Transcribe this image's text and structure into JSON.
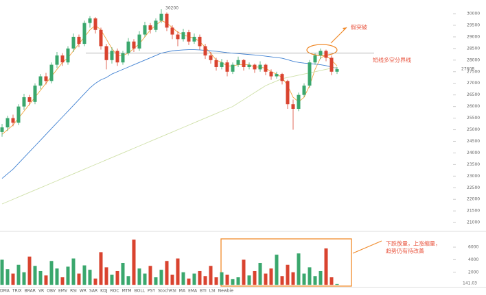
{
  "chart_data": {
    "type": "candlestick",
    "candles": [
      [
        24900,
        25250,
        24700,
        25100
      ],
      [
        25100,
        25600,
        24950,
        25500
      ],
      [
        25500,
        25650,
        25150,
        25300
      ],
      [
        25300,
        26100,
        25200,
        26000
      ],
      [
        26000,
        26550,
        25850,
        26400
      ],
      [
        26400,
        26500,
        26050,
        26200
      ],
      [
        26200,
        27000,
        26100,
        26900
      ],
      [
        26900,
        27400,
        26750,
        27300
      ],
      [
        27300,
        27450,
        26950,
        27100
      ],
      [
        27100,
        27900,
        27000,
        27800
      ],
      [
        27800,
        28350,
        27650,
        28200
      ],
      [
        28200,
        28300,
        27750,
        27900
      ],
      [
        27900,
        28600,
        27800,
        28500
      ],
      [
        28500,
        29150,
        28350,
        29000
      ],
      [
        29000,
        29100,
        28550,
        28700
      ],
      [
        28700,
        29700,
        28600,
        29600
      ],
      [
        29600,
        29900,
        29400,
        29800
      ],
      [
        29800,
        29850,
        29150,
        29300
      ],
      [
        29300,
        29400,
        28450,
        28600
      ],
      [
        28600,
        28700,
        27600,
        28000
      ],
      [
        28000,
        28550,
        27850,
        28400
      ],
      [
        28400,
        28500,
        27750,
        27900
      ],
      [
        27900,
        28400,
        27800,
        28300
      ],
      [
        28300,
        28950,
        28200,
        28800
      ],
      [
        28800,
        28900,
        28350,
        28500
      ],
      [
        28500,
        29250,
        28400,
        29100
      ],
      [
        29100,
        29650,
        29000,
        29500
      ],
      [
        29500,
        29600,
        29150,
        29300
      ],
      [
        29300,
        29800,
        29200,
        29700
      ],
      [
        29700,
        30200,
        29600,
        30000
      ],
      [
        30000,
        30050,
        29250,
        29400
      ],
      [
        29400,
        29500,
        28900,
        29100
      ],
      [
        29100,
        29250,
        28600,
        28900
      ],
      [
        28900,
        29350,
        28800,
        29200
      ],
      [
        29200,
        29300,
        28650,
        28800
      ],
      [
        28800,
        29150,
        28700,
        29000
      ],
      [
        29000,
        29100,
        28450,
        28600
      ],
      [
        28600,
        28700,
        28050,
        28200
      ],
      [
        28200,
        28350,
        27850,
        28000
      ],
      [
        28000,
        28100,
        27550,
        27700
      ],
      [
        27700,
        28050,
        27600,
        27900
      ],
      [
        27900,
        28000,
        27300,
        27500
      ],
      [
        27500,
        27900,
        27400,
        27800
      ],
      [
        27800,
        28150,
        27700,
        28000
      ],
      [
        28000,
        28050,
        27550,
        27700
      ],
      [
        27700,
        27900,
        27600,
        27800
      ],
      [
        27800,
        27850,
        27450,
        27600
      ],
      [
        27600,
        27950,
        27500,
        27800
      ],
      [
        27800,
        27850,
        27350,
        27500
      ],
      [
        27500,
        27600,
        27150,
        27300
      ],
      [
        27300,
        27500,
        27200,
        27400
      ],
      [
        27400,
        27450,
        26950,
        27100
      ],
      [
        27100,
        27150,
        25900,
        26100
      ],
      [
        26100,
        26300,
        25000,
        25900
      ],
      [
        25900,
        26600,
        25800,
        26500
      ],
      [
        26500,
        27000,
        26400,
        26900
      ],
      [
        26900,
        28000,
        26800,
        27900
      ],
      [
        27900,
        28300,
        27800,
        28200
      ],
      [
        28200,
        28500,
        28050,
        28400
      ],
      [
        28400,
        28450,
        27950,
        28100
      ],
      [
        28100,
        28200,
        27350,
        27500
      ],
      [
        27500,
        27700,
        27400,
        27608
      ]
    ],
    "up_color": "#3aa76d",
    "down_color": "#d9432f",
    "lines": [
      {
        "color": "#f2a33a",
        "values": [
          24800,
          25000,
          25200,
          25500,
          25800,
          26100,
          26400,
          26700,
          27000,
          27300,
          27600,
          27900,
          28100,
          28400,
          28700,
          29000,
          29300,
          29500,
          29300,
          28900,
          28500,
          28200,
          28200,
          28300,
          28500,
          28700,
          29000,
          29300,
          29500,
          29700,
          29600,
          29400,
          29200,
          29100,
          29000,
          28950,
          28800,
          28550,
          28300,
          28000,
          27900,
          27750,
          27750,
          27800,
          27800,
          27800,
          27700,
          27700,
          27650,
          27500,
          27400,
          27250,
          26900,
          26400,
          26200,
          26400,
          26900,
          27600,
          28100,
          28200,
          28000,
          27750
        ]
      },
      {
        "color": "#3d7fd1",
        "values": [
          22900,
          23100,
          23300,
          23550,
          23800,
          24050,
          24300,
          24550,
          24800,
          25050,
          25300,
          25550,
          25800,
          26050,
          26300,
          26550,
          26800,
          27000,
          27150,
          27250,
          27400,
          27500,
          27600,
          27700,
          27800,
          27900,
          28000,
          28100,
          28200,
          28300,
          28350,
          28400,
          28420,
          28440,
          28450,
          28450,
          28440,
          28420,
          28400,
          28380,
          28350,
          28320,
          28300,
          28280,
          28260,
          28240,
          28220,
          28200,
          28170,
          28140,
          28110,
          28080,
          28020,
          27950,
          27900,
          27870,
          27850,
          27830,
          27800,
          27760,
          27700,
          27650
        ]
      },
      {
        "color": "#cfe0a8",
        "values": [
          21800,
          21900,
          22000,
          22100,
          22200,
          22300,
          22400,
          22500,
          22600,
          22700,
          22800,
          22900,
          23000,
          23100,
          23200,
          23300,
          23400,
          23500,
          23600,
          23700,
          23800,
          23900,
          24000,
          24100,
          24200,
          24300,
          24400,
          24500,
          24600,
          24700,
          24800,
          24900,
          25000,
          25100,
          25200,
          25300,
          25400,
          25500,
          25600,
          25700,
          25800,
          25900,
          26000,
          26150,
          26300,
          26450,
          26600,
          26750,
          26900,
          27000,
          27100,
          27200,
          27250,
          27300,
          27350,
          27400,
          27450,
          27500,
          27550,
          27600,
          27650,
          27700
        ]
      }
    ],
    "ylim": [
      20650,
      30590
    ],
    "yticks": [
      21000,
      21500,
      22000,
      22500,
      23000,
      23500,
      24000,
      24500,
      25000,
      25500,
      26000,
      26500,
      27000,
      27500,
      28000,
      28500,
      29000,
      29500,
      30000
    ],
    "divider_level": 28300,
    "volumes": [
      4000,
      2500,
      1800,
      3200,
      2000,
      4500,
      3000,
      2200,
      1500,
      3800,
      2600,
      1200,
      2900,
      4200,
      1800,
      3100,
      2400,
      1000,
      5200,
      2800,
      1600,
      2200,
      3500,
      1400,
      7200,
      2600,
      1800,
      3000,
      1200,
      2400,
      3800,
      1600,
      4200,
      2000,
      1000,
      1800,
      2200,
      1400,
      3000,
      1200,
      2000,
      1600,
      900,
      1200,
      4000,
      1500,
      2200,
      3500,
      1800,
      2600,
      4800,
      1400,
      3200,
      2000,
      5000,
      1800,
      2800,
      1400,
      2200,
      5800,
      1200,
      141.03
    ],
    "volume_lim": [
      -200,
      7750
    ],
    "volume_ticks": [
      2000,
      4000,
      6000
    ],
    "annotations": {
      "fake_breakout": "假突破",
      "divider": "短线多空分界线",
      "volume_note_1": "下跌放量，上涨缩量，",
      "volume_note_2": "趋势仍有待改善"
    },
    "indicator_tabs": [
      "DMA",
      "TRIX",
      "BRAR",
      "VR",
      "OBV",
      "EMV",
      "RSI",
      "WR",
      "SAR",
      "KDJ",
      "ROC",
      "MTM",
      "BOLL",
      "PSY",
      "StochRSI",
      "MA",
      "EMA",
      "BTI",
      "LSI",
      "Newbie"
    ]
  }
}
